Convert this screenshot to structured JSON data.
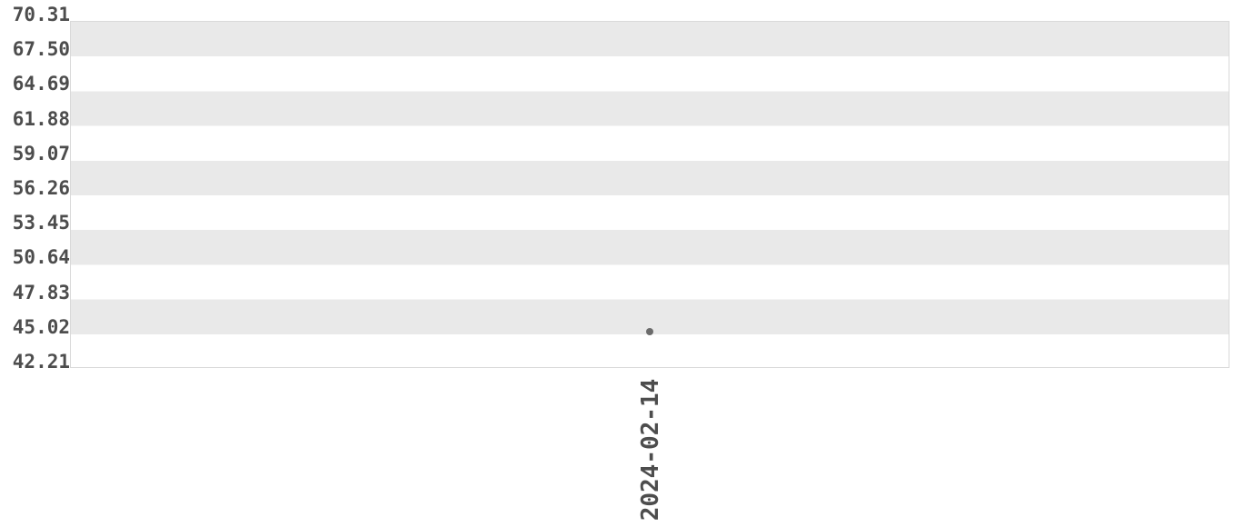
{
  "page": {
    "background": "#ffffff"
  },
  "chart_data": {
    "type": "scatter",
    "title": "",
    "xlabel": "",
    "ylabel": "",
    "x": [
      "2024-02-14"
    ],
    "series": [
      {
        "name": "",
        "values": [
          45.1
        ]
      }
    ],
    "ylim": [
      42.21,
      70.31
    ],
    "yticks": [
      70.31,
      67.5,
      64.69,
      61.88,
      59.07,
      56.26,
      53.45,
      50.64,
      47.83,
      45.02,
      42.21
    ],
    "ytick_labels": [
      "70.31",
      "67.50",
      "64.69",
      "61.88",
      "59.07",
      "56.26",
      "53.45",
      "50.64",
      "47.83",
      "45.02",
      "42.21"
    ],
    "xtick_labels": [
      "2024-02-14"
    ],
    "grid": "alternating horizontal bands",
    "legend_position": "none",
    "marker": "circle",
    "colors": {
      "background": "#ffffff",
      "band": "#e9e9e9",
      "plot_border": "#d9d9d9",
      "tick_text": "#4d4d4d",
      "point": "#6b6b6b"
    }
  }
}
